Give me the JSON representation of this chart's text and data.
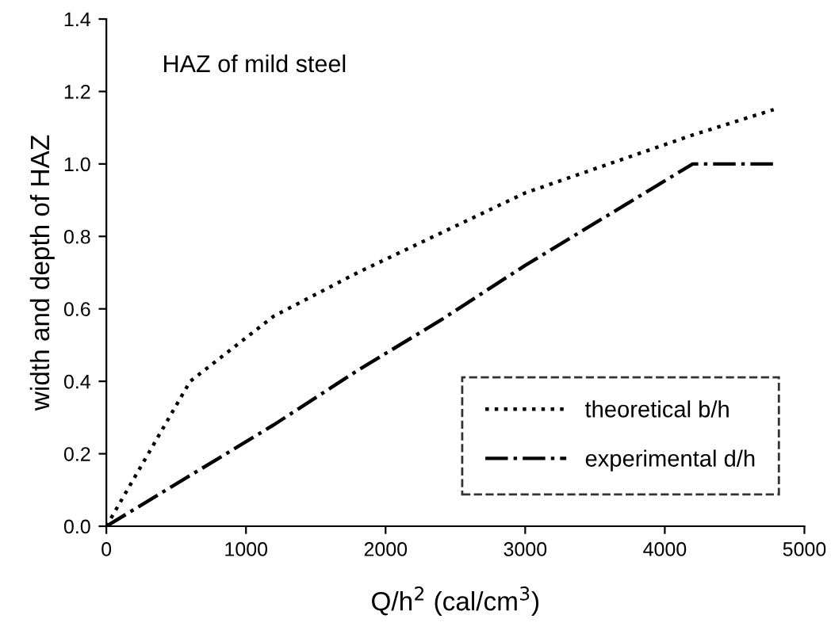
{
  "chart_data": {
    "type": "line",
    "xlabel": "Q/h$^{2}$ (cal/cm$^{3}$)",
    "ylabel": "width and depth of HAZ",
    "annotations": [
      "HAZ of mild steel"
    ],
    "xlim": [
      0,
      5000
    ],
    "xticks": [
      0,
      1000,
      2000,
      3000,
      4000,
      5000
    ],
    "ylim": [
      0,
      1.4
    ],
    "yticks": [
      {
        "value": 0,
        "label": "0.0"
      },
      {
        "value": 0.2,
        "label": "0.2"
      },
      {
        "value": 0.4,
        "label": "0.4"
      },
      {
        "value": 0.6,
        "label": "0.6"
      },
      {
        "value": 0.8,
        "label": "0.8"
      },
      {
        "value": 1.0,
        "label": "1.0"
      },
      {
        "value": 1.2,
        "label": "1.2"
      },
      {
        "value": 1.4,
        "label": "1.4"
      }
    ],
    "grid": false,
    "legend": "bottom right",
    "marker": "none",
    "series": [
      {
        "name": "theoretical b/h",
        "color": "#000000",
        "line_style": "dotted",
        "x": [
          0,
          600,
          1200,
          1800,
          2400,
          3000,
          3600,
          4200,
          4780
        ],
        "values": [
          0,
          0.4,
          0.58,
          0.7,
          0.81,
          0.92,
          1.0,
          1.08,
          1.15
        ]
      },
      {
        "name": "experimental d/h",
        "color": "#000000",
        "line_style": "dashdot",
        "x": [
          0,
          600,
          1200,
          1800,
          2400,
          3000,
          3600,
          4200,
          4780
        ],
        "values": [
          0,
          0.14,
          0.28,
          0.43,
          0.57,
          0.72,
          0.86,
          1.0,
          1.0
        ]
      }
    ]
  }
}
